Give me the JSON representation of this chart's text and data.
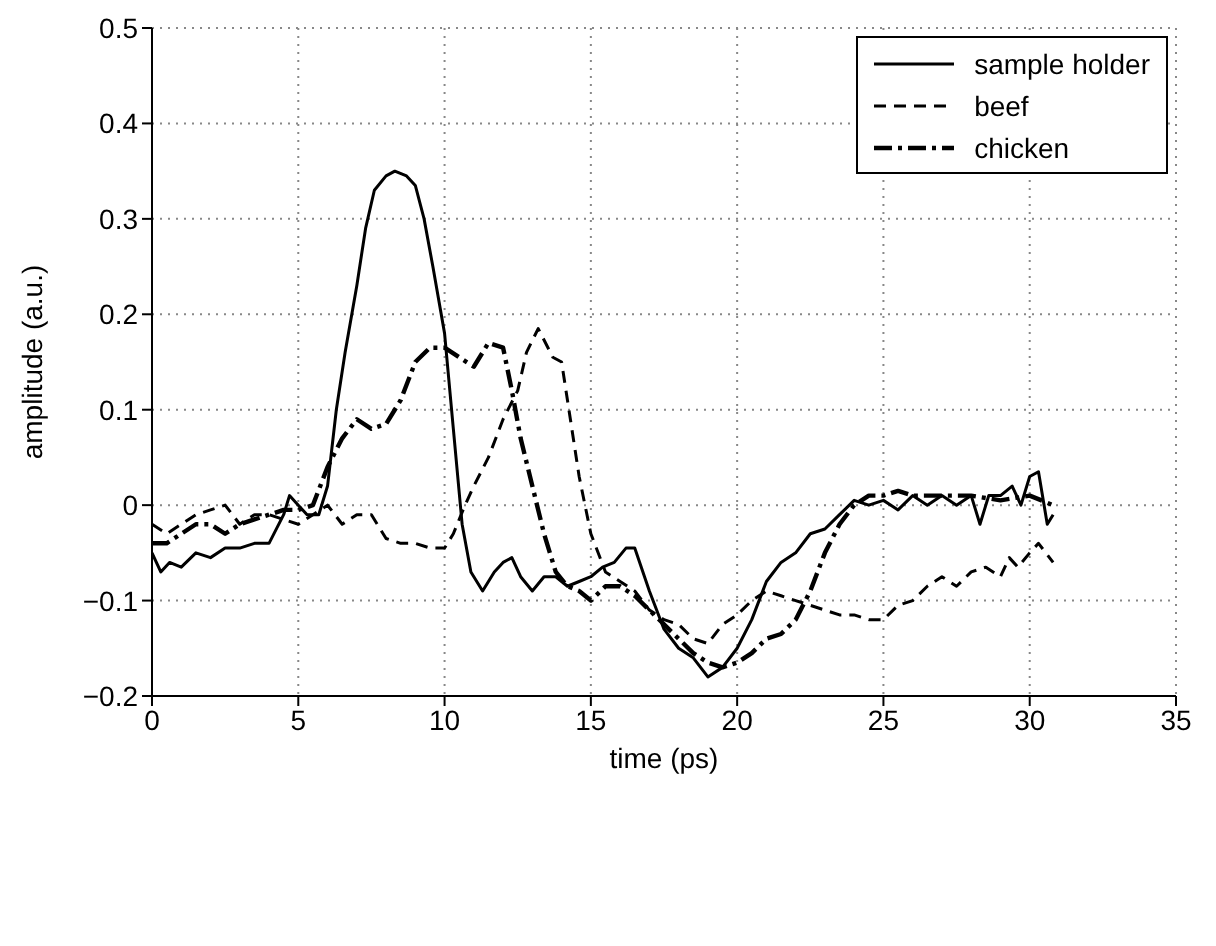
{
  "chart_data": {
    "type": "line",
    "xlabel": "time (ps)",
    "ylabel": "amplitude (a.u.)",
    "xlim": [
      0,
      35
    ],
    "xticks": [
      0,
      5,
      10,
      15,
      20,
      25,
      30,
      35
    ],
    "ylim": [
      -0.2,
      0.5
    ],
    "yticks": [
      {
        "value": -0.2,
        "label": "−0.2"
      },
      {
        "value": -0.1,
        "label": "−0.1"
      },
      0,
      0.1,
      0.2,
      0.3,
      0.4,
      0.5
    ],
    "grid": true,
    "legend": "top right",
    "marker": "none",
    "series": [
      {
        "name": "sample holder",
        "color": "#000000",
        "line_style": "solid",
        "x": [
          0,
          0.3,
          0.6,
          1,
          1.5,
          2,
          2.5,
          3,
          3.5,
          4,
          4.5,
          4.7,
          5,
          5.3,
          5.7,
          6,
          6.3,
          6.6,
          7,
          7.3,
          7.6,
          8,
          8.3,
          8.7,
          9,
          9.3,
          9.6,
          10,
          10.3,
          10.6,
          10.9,
          11.3,
          11.7,
          12,
          12.3,
          12.6,
          13,
          13.4,
          13.8,
          14.2,
          14.6,
          15,
          15.4,
          15.8,
          16.2,
          16.5,
          17,
          17.5,
          18,
          18.5,
          19,
          19.5,
          20,
          20.5,
          21,
          21.5,
          22,
          22.5,
          23,
          23.5,
          24,
          24.5,
          25,
          25.5,
          26,
          26.5,
          27,
          27.5,
          28,
          28.3,
          28.6,
          29,
          29.4,
          29.7,
          30,
          30.3,
          30.6,
          30.8
        ],
        "values": [
          -0.05,
          -0.07,
          -0.06,
          -0.065,
          -0.05,
          -0.055,
          -0.045,
          -0.045,
          -0.04,
          -0.04,
          -0.01,
          0.01,
          0,
          -0.01,
          -0.01,
          0.02,
          0.1,
          0.16,
          0.23,
          0.29,
          0.33,
          0.345,
          0.35,
          0.345,
          0.335,
          0.3,
          0.25,
          0.18,
          0.08,
          -0.02,
          -0.07,
          -0.09,
          -0.07,
          -0.06,
          -0.055,
          -0.075,
          -0.09,
          -0.075,
          -0.075,
          -0.085,
          -0.08,
          -0.075,
          -0.065,
          -0.06,
          -0.045,
          -0.045,
          -0.09,
          -0.13,
          -0.15,
          -0.16,
          -0.18,
          -0.17,
          -0.15,
          -0.12,
          -0.08,
          -0.06,
          -0.05,
          -0.03,
          -0.025,
          -0.01,
          0.005,
          0,
          0.005,
          -0.005,
          0.01,
          0,
          0.01,
          0,
          0.01,
          -0.02,
          0.01,
          0.01,
          0.02,
          0,
          0.03,
          0.035,
          -0.02,
          -0.01
        ]
      },
      {
        "name": "beef",
        "color": "#000000",
        "line_style": "dashed",
        "x": [
          0,
          0.5,
          1,
          1.5,
          2,
          2.5,
          3,
          3.5,
          4,
          4.5,
          5,
          5.5,
          6,
          6.5,
          7,
          7.5,
          8,
          8.5,
          9,
          9.5,
          10,
          10.3,
          10.7,
          11,
          11.5,
          12,
          12.5,
          12.8,
          13.2,
          13.7,
          14,
          14.3,
          14.6,
          15,
          15.5,
          16,
          16.5,
          17,
          17.5,
          18,
          18.5,
          19,
          19.5,
          20,
          20.5,
          21,
          21.5,
          22,
          22.5,
          23,
          23.5,
          24,
          24.5,
          25,
          25.5,
          26,
          26.5,
          27,
          27.5,
          28,
          28.5,
          29,
          29.3,
          29.6,
          30,
          30.3,
          30.8
        ],
        "values": [
          -0.02,
          -0.03,
          -0.02,
          -0.01,
          -0.005,
          0,
          -0.02,
          -0.01,
          -0.01,
          -0.015,
          -0.02,
          -0.01,
          0,
          -0.02,
          -0.01,
          -0.01,
          -0.035,
          -0.04,
          -0.04,
          -0.045,
          -0.045,
          -0.03,
          0,
          0.02,
          0.05,
          0.09,
          0.12,
          0.16,
          0.185,
          0.155,
          0.15,
          0.09,
          0.03,
          -0.03,
          -0.07,
          -0.08,
          -0.09,
          -0.11,
          -0.12,
          -0.125,
          -0.14,
          -0.145,
          -0.125,
          -0.115,
          -0.1,
          -0.09,
          -0.095,
          -0.1,
          -0.105,
          -0.11,
          -0.115,
          -0.115,
          -0.12,
          -0.12,
          -0.105,
          -0.1,
          -0.085,
          -0.075,
          -0.085,
          -0.07,
          -0.065,
          -0.075,
          -0.055,
          -0.065,
          -0.05,
          -0.04,
          -0.06
        ]
      },
      {
        "name": "chicken",
        "color": "#000000",
        "line_style": "dashdot",
        "x": [
          0,
          0.5,
          1,
          1.5,
          2,
          2.5,
          3,
          3.5,
          4,
          4.5,
          5,
          5.5,
          6,
          6.5,
          7,
          7.5,
          8,
          8.5,
          9,
          9.5,
          10,
          10.5,
          11,
          11.5,
          12,
          12.3,
          12.6,
          13,
          13.4,
          13.8,
          14.2,
          14.6,
          15,
          15.5,
          16,
          16.5,
          17,
          17.5,
          18,
          18.5,
          19,
          19.5,
          20,
          20.5,
          21,
          21.5,
          22,
          22.5,
          23,
          23.5,
          24,
          24.5,
          25,
          25.5,
          26,
          27,
          28,
          29,
          30,
          30.8
        ],
        "values": [
          -0.04,
          -0.04,
          -0.03,
          -0.02,
          -0.02,
          -0.03,
          -0.02,
          -0.015,
          -0.01,
          -0.005,
          -0.005,
          0,
          0.04,
          0.07,
          0.09,
          0.08,
          0.085,
          0.11,
          0.15,
          0.165,
          0.165,
          0.155,
          0.145,
          0.17,
          0.165,
          0.12,
          0.07,
          0.02,
          -0.03,
          -0.07,
          -0.085,
          -0.09,
          -0.1,
          -0.085,
          -0.085,
          -0.095,
          -0.11,
          -0.125,
          -0.14,
          -0.155,
          -0.165,
          -0.17,
          -0.165,
          -0.155,
          -0.14,
          -0.135,
          -0.12,
          -0.09,
          -0.05,
          -0.02,
          0,
          0.01,
          0.01,
          0.015,
          0.01,
          0.01,
          0.01,
          0.005,
          0.01,
          0
        ]
      }
    ]
  }
}
